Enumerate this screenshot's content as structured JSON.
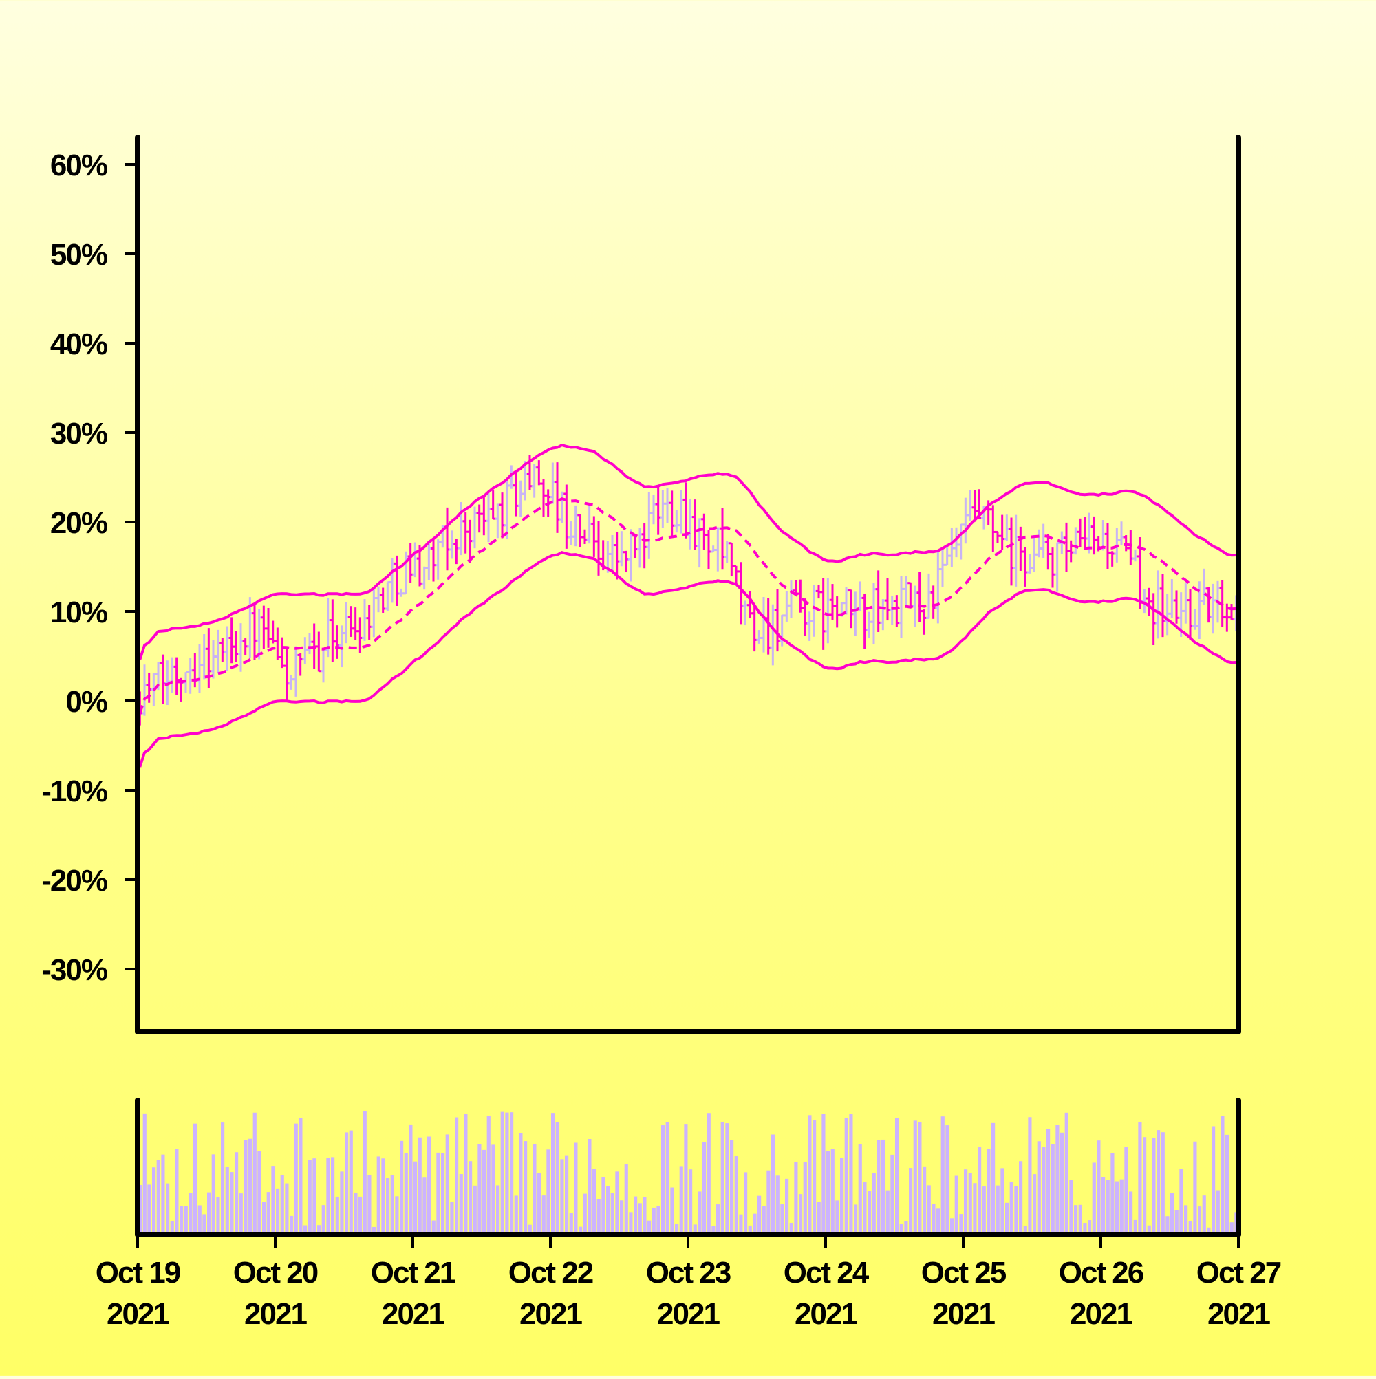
{
  "chart_data": {
    "type": "ohlc",
    "title": "",
    "xlabel": "",
    "ylabel": "",
    "x_start": "2021-10-19",
    "x_end": "2021-10-27",
    "bars_per_day": 30,
    "ylim": [
      -37,
      63
    ],
    "y_ticks": [
      -30,
      -20,
      -10,
      0,
      10,
      20,
      30,
      40,
      50,
      60
    ],
    "y_tick_labels": [
      "-30%",
      "-20%",
      "-10%",
      "0%",
      "10%",
      "20%",
      "30%",
      "40%",
      "50%",
      "60%"
    ],
    "x_ticks": [
      {
        "line1": "Oct 19",
        "line2": "2021"
      },
      {
        "line1": "Oct 20",
        "line2": "2021"
      },
      {
        "line1": "Oct 21",
        "line2": "2021"
      },
      {
        "line1": "Oct 22",
        "line2": "2021"
      },
      {
        "line1": "Oct 23",
        "line2": "2021"
      },
      {
        "line1": "Oct 24",
        "line2": "2021"
      },
      {
        "line1": "Oct 25",
        "line2": "2021"
      },
      {
        "line1": "Oct 26",
        "line2": "2021"
      },
      {
        "line1": "Oct 27",
        "line2": "2021"
      }
    ],
    "overlays": [
      "bollinger-upper",
      "moving-average",
      "bollinger-lower"
    ],
    "price_path_key_points": [
      {
        "day": 0.0,
        "value": 1
      },
      {
        "day": 0.5,
        "value": 5
      },
      {
        "day": 0.85,
        "value": 8
      },
      {
        "day": 1.1,
        "value": 3
      },
      {
        "day": 1.5,
        "value": 8
      },
      {
        "day": 2.0,
        "value": 15
      },
      {
        "day": 2.5,
        "value": 20
      },
      {
        "day": 2.9,
        "value": 25
      },
      {
        "day": 3.2,
        "value": 19
      },
      {
        "day": 3.5,
        "value": 16
      },
      {
        "day": 3.9,
        "value": 22
      },
      {
        "day": 4.2,
        "value": 17
      },
      {
        "day": 4.5,
        "value": 8
      },
      {
        "day": 4.8,
        "value": 10
      },
      {
        "day": 5.3,
        "value": 10
      },
      {
        "day": 5.7,
        "value": 11
      },
      {
        "day": 6.1,
        "value": 20
      },
      {
        "day": 6.4,
        "value": 16
      },
      {
        "day": 6.7,
        "value": 16
      },
      {
        "day": 7.0,
        "value": 18
      },
      {
        "day": 7.5,
        "value": 10
      },
      {
        "day": 8.0,
        "value": 11
      }
    ],
    "colors": {
      "bar_up": "#c8b4f5",
      "bar_down": "#ff00c8",
      "bands": "#ff00cc",
      "volume": "#ccb3ff",
      "axis": "#000000"
    },
    "grid": false,
    "legend": "none"
  }
}
